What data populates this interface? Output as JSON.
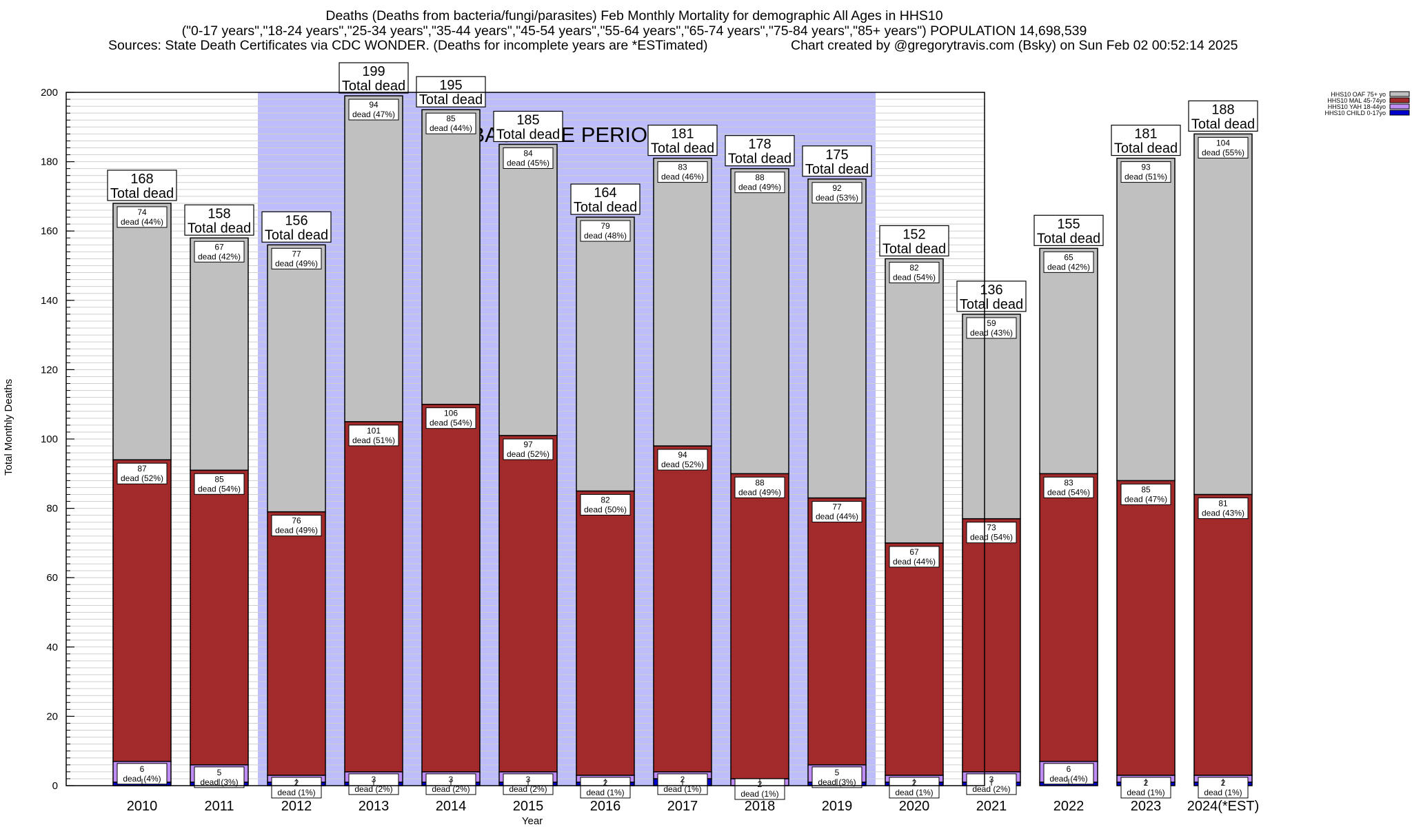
{
  "title": {
    "line1": "Deaths (Deaths from bacteria/fungi/parasites) Feb Monthly Mortality for demographic All Ages in HHS10",
    "line2": "(\"0-17 years\",\"18-24 years\",\"25-34 years\",\"35-44 years\",\"45-54 years\",\"55-64 years\",\"65-74 years\",\"75-84 years\",\"85+ years\") POPULATION 14,698,539",
    "sources": "Sources: State Death Certificates via CDC WONDER. (Deaths for incomplete years are *ESTimated)",
    "credit": "Chart created by @gregorytravis.com (Bsky) on Sun Feb 02 00:52:14 2025"
  },
  "colors": {
    "baseline_shade": "#bdbdfb",
    "oaf": "#c0c0c0",
    "mal": "#a22a2a",
    "yah": "#c08cf5",
    "child": "#0000cc",
    "grid": "#cfcfcf"
  },
  "chart_data": {
    "type": "bar",
    "stacked": true,
    "xlabel": "Year",
    "ylabel": "Total Monthly Deaths",
    "ylim": [
      0,
      200
    ],
    "yticks": [
      0,
      20,
      40,
      60,
      80,
      100,
      120,
      140,
      160,
      180,
      200
    ],
    "grid": true,
    "legend_position": "top-right",
    "annotation": "BASELINE PERIOD",
    "baseline_period": [
      "2012",
      "2019"
    ],
    "total_label_suffix": "Total dead",
    "categories": [
      "2010",
      "2011",
      "2012",
      "2013",
      "2014",
      "2015",
      "2016",
      "2017",
      "2018",
      "2019",
      "2020",
      "2021",
      "2022",
      "2023",
      "2024(*EST)"
    ],
    "totals": [
      168,
      158,
      156,
      199,
      195,
      185,
      164,
      181,
      178,
      175,
      152,
      136,
      155,
      181,
      188
    ],
    "series": [
      {
        "name": "HHS10 CHILD 0-17yo",
        "color": "#0000cc",
        "values": [
          1,
          1,
          1,
          1,
          1,
          1,
          1,
          2,
          0,
          1,
          1,
          1,
          1,
          1,
          1
        ],
        "labels": [
          "",
          "",
          "",
          "",
          "",
          "",
          "",
          "",
          "",
          "",
          "",
          "",
          "",
          "",
          ""
        ]
      },
      {
        "name": "HHS10 YAH 18-44yo",
        "color": "#c08cf5",
        "values": [
          6,
          5,
          2,
          3,
          3,
          3,
          2,
          2,
          2,
          5,
          2,
          3,
          6,
          2,
          2
        ],
        "labels": [
          "6\ndead (4%)",
          "5\ndead (3%)",
          "2\ndead (1%)",
          "3\ndead (2%)",
          "3\ndead (2%)",
          "3\ndead (2%)",
          "2\ndead (1%)",
          "2\ndead (1%)",
          "2\ndead (1%)",
          "5\ndead (3%)",
          "2\ndead (1%)",
          "3\ndead (2%)",
          "6\ndead (4%)",
          "2\ndead (1%)",
          "2\ndead (1%)"
        ]
      },
      {
        "name": "HHS10 MAL 45-74yo",
        "color": "#a22a2a",
        "values": [
          87,
          85,
          76,
          101,
          106,
          97,
          82,
          94,
          88,
          77,
          67,
          73,
          83,
          85,
          81
        ],
        "labels": [
          "87\ndead (52%)",
          "85\ndead (54%)",
          "76\ndead (49%)",
          "101\ndead (51%)",
          "106\ndead (54%)",
          "97\ndead (52%)",
          "82\ndead (50%)",
          "94\ndead (52%)",
          "88\ndead (49%)",
          "77\ndead (44%)",
          "67\ndead (44%)",
          "73\ndead (54%)",
          "83\ndead (54%)",
          "85\ndead (47%)",
          "81\ndead (43%)"
        ]
      },
      {
        "name": "HHS10 OAF 75+ yo",
        "color": "#c0c0c0",
        "values": [
          74,
          67,
          77,
          94,
          85,
          84,
          79,
          83,
          88,
          92,
          82,
          59,
          65,
          93,
          104
        ],
        "labels": [
          "74\ndead (44%)",
          "67\ndead (42%)",
          "77\ndead (49%)",
          "94\ndead (47%)",
          "85\ndead (44%)",
          "84\ndead (45%)",
          "79\ndead (48%)",
          "83\ndead (46%)",
          "88\ndead (49%)",
          "92\ndead (53%)",
          "82\ndead (54%)",
          "59\ndead (43%)",
          "65\ndead (42%)",
          "93\ndead (51%)",
          "104\ndead (55%)"
        ]
      }
    ],
    "legend_order": [
      "HHS10 OAF 75+ yo",
      "HHS10 MAL 45-74yo",
      "HHS10 YAH 18-44yo",
      "HHS10 CHILD 0-17yo"
    ]
  }
}
